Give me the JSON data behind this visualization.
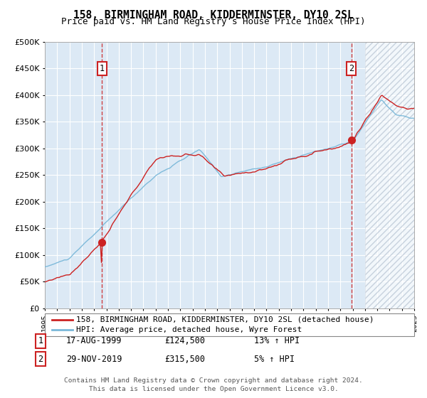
{
  "title": "158, BIRMINGHAM ROAD, KIDDERMINSTER, DY10 2SL",
  "subtitle": "Price paid vs. HM Land Registry's House Price Index (HPI)",
  "ylim": [
    0,
    500000
  ],
  "yticks": [
    0,
    50000,
    100000,
    150000,
    200000,
    250000,
    300000,
    350000,
    400000,
    450000,
    500000
  ],
  "ytick_labels": [
    "£0",
    "£50K",
    "£100K",
    "£150K",
    "£200K",
    "£250K",
    "£300K",
    "£350K",
    "£400K",
    "£450K",
    "£500K"
  ],
  "sale1_date": 1999.63,
  "sale1_price": 124500,
  "sale2_date": 2019.91,
  "sale2_price": 315500,
  "legend_line1": "158, BIRMINGHAM ROAD, KIDDERMINSTER, DY10 2SL (detached house)",
  "legend_line2": "HPI: Average price, detached house, Wyre Forest",
  "annotation1_label": "1",
  "annotation1_date": "17-AUG-1999",
  "annotation1_price": "£124,500",
  "annotation1_change": "13% ↑ HPI",
  "annotation2_label": "2",
  "annotation2_date": "29-NOV-2019",
  "annotation2_price": "£315,500",
  "annotation2_change": "5% ↑ HPI",
  "footer": "Contains HM Land Registry data © Crown copyright and database right 2024.\nThis data is licensed under the Open Government Licence v3.0.",
  "hpi_color": "#7ab8d9",
  "price_color": "#cc2222",
  "bg_color": "#dce9f5",
  "hatch_color": "#b0bece",
  "grid_color": "#ffffff",
  "title_fontsize": 10.5,
  "subtitle_fontsize": 9,
  "tick_fontsize": 8,
  "hatch_start": 2021.0,
  "xlim_start": 1995,
  "xlim_end": 2025
}
